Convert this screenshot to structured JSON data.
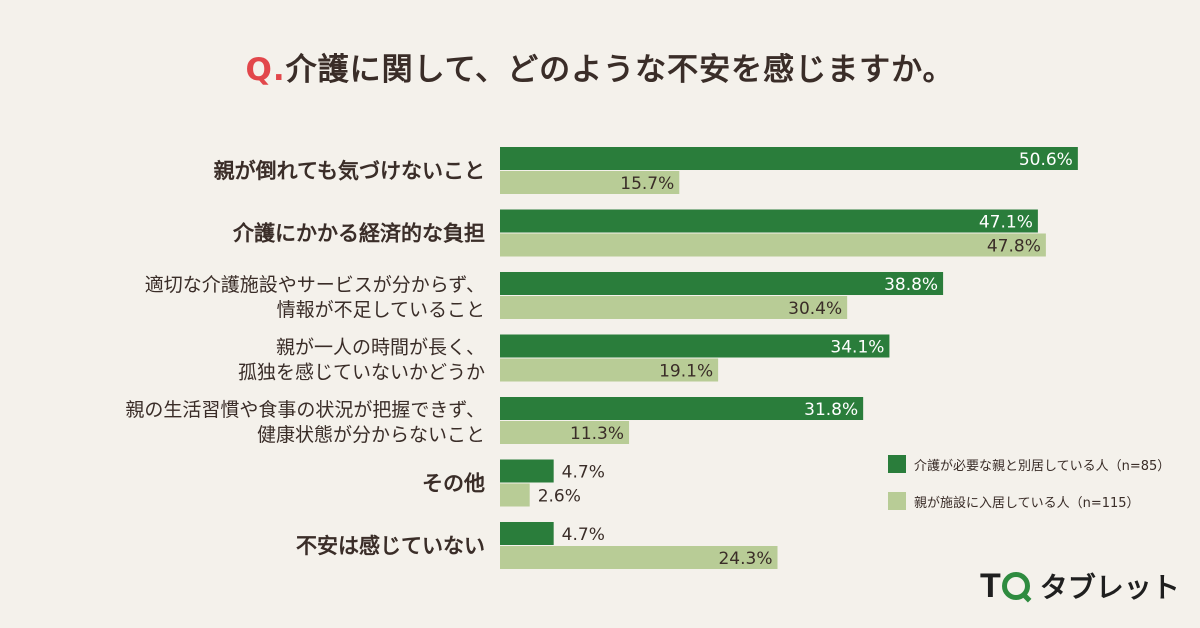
{
  "header": {
    "q_prefix": "Q.",
    "title": "介護に関して、どのような不安を感じますか。"
  },
  "chart_data": {
    "type": "bar",
    "orientation": "horizontal",
    "categories": [
      [
        "親が倒れても気づけないこと"
      ],
      [
        "介護にかかる経済的な負担"
      ],
      [
        "適切な介護施設やサービスが分からず、",
        "情報が不足していること"
      ],
      [
        "親が一人の時間が長く、",
        "孤独を感じていないかどうか"
      ],
      [
        "親の生活習慣や食事の状況が把握できず、",
        "健康状態が分からないこと"
      ],
      [
        "その他"
      ],
      [
        "不安は感じていない"
      ]
    ],
    "series": [
      {
        "name": "介護が必要な親と別居している人（n=85）",
        "values": [
          50.6,
          47.1,
          38.8,
          34.1,
          31.8,
          4.7,
          4.7
        ],
        "labels": [
          "50.6%",
          "47.1%",
          "38.8%",
          "34.1%",
          "31.8%",
          "4.7%",
          "4.7%"
        ],
        "color": "#2a7d3b"
      },
      {
        "name": "親が施設に入居している人（n=115）",
        "values": [
          15.7,
          47.8,
          30.4,
          19.1,
          11.3,
          2.6,
          24.3
        ],
        "labels": [
          "15.7%",
          "47.8%",
          "30.4%",
          "19.1%",
          "11.3%",
          "2.6%",
          "24.3%"
        ],
        "color": "#b8cc96"
      }
    ],
    "xlim": [
      0,
      55
    ],
    "grid": false,
    "legend_position": "bottom-right"
  },
  "logo": {
    "tq": "T",
    "brand": "タブレット"
  }
}
